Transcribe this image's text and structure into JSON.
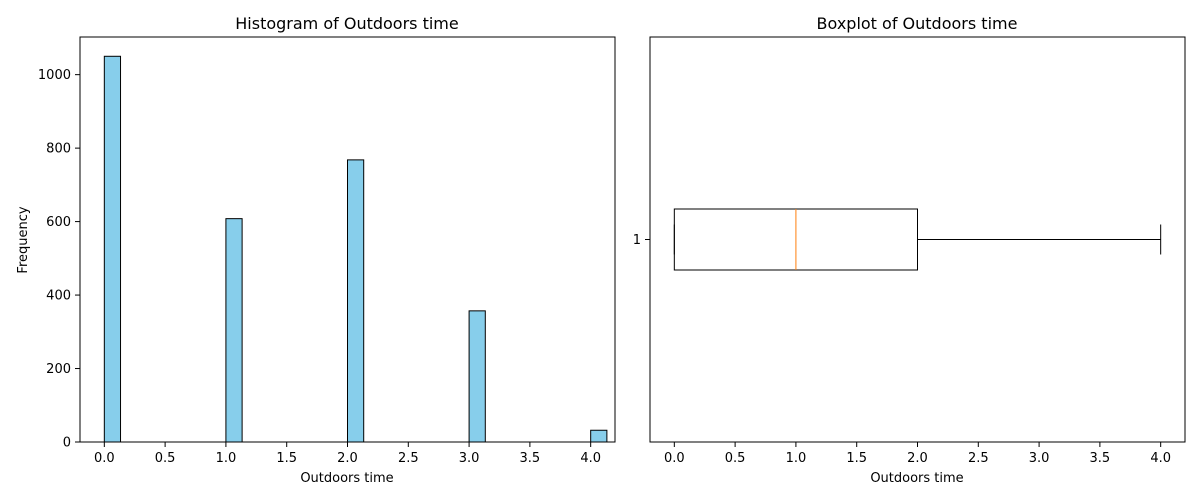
{
  "chart_data": [
    {
      "type": "bar",
      "title": "Histogram of Outdoors time",
      "xlabel": "Outdoors time",
      "ylabel": "Frequency",
      "xlim": [
        -0.2,
        4.2
      ],
      "ylim": [
        0,
        1102.5
      ],
      "bin_width": 0.1333,
      "xticks": [
        "0.0",
        "0.5",
        "1.0",
        "1.5",
        "2.0",
        "2.5",
        "3.0",
        "3.5",
        "4.0"
      ],
      "yticks": [
        "0",
        "200",
        "400",
        "600",
        "800",
        "1000"
      ],
      "x": [
        0,
        1,
        2,
        3,
        4
      ],
      "values": [
        1050,
        608,
        768,
        357,
        32
      ],
      "colors": {
        "fill": "#87ceeb",
        "edge": "#000000"
      },
      "grid": false
    },
    {
      "type": "boxplot",
      "title": "Boxplot of Outdoors time",
      "xlabel": "Outdoors time",
      "ylabel": "",
      "orientation": "horizontal",
      "xlim": [
        -0.2,
        4.2
      ],
      "xticks": [
        "0.0",
        "0.5",
        "1.0",
        "1.5",
        "2.0",
        "2.5",
        "3.0",
        "3.5",
        "4.0"
      ],
      "yticks": [
        "1"
      ],
      "stats": {
        "min": 0,
        "q1": 0,
        "median": 1,
        "q3": 2,
        "max": 4
      },
      "colors": {
        "box": "#000000",
        "median": "#ff7f0e"
      },
      "grid": false
    }
  ]
}
